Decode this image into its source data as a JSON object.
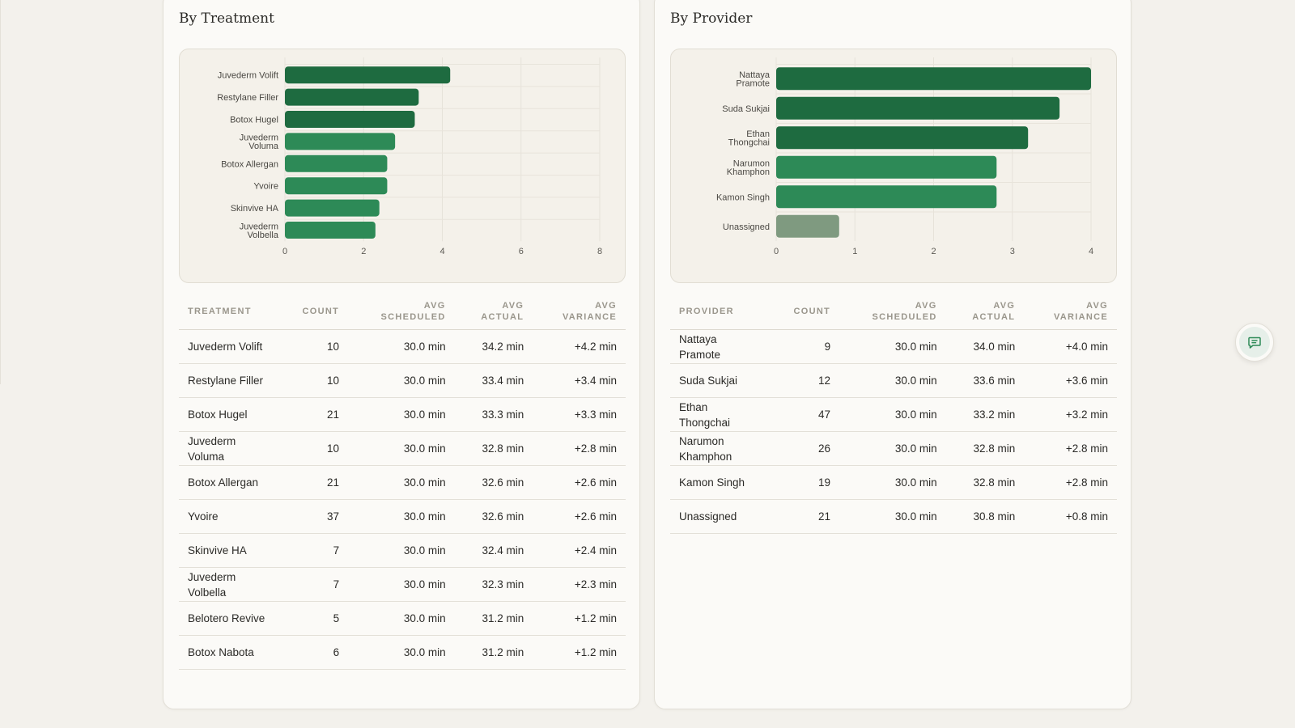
{
  "treatment": {
    "title": "By Treatment",
    "headers": {
      "name": "TREATMENT",
      "count": "COUNT",
      "sched": "AVG SCHEDULED",
      "actual": "AVG ACTUAL",
      "variance": "AVG VARIANCE"
    },
    "rows": [
      {
        "name": "Juvederm Volift",
        "count": "10",
        "sched": "30.0 min",
        "actual": "34.2 min",
        "variance": "+4.2 min"
      },
      {
        "name": "Restylane Filler",
        "count": "10",
        "sched": "30.0 min",
        "actual": "33.4 min",
        "variance": "+3.4 min"
      },
      {
        "name": "Botox Hugel",
        "count": "21",
        "sched": "30.0 min",
        "actual": "33.3 min",
        "variance": "+3.3 min"
      },
      {
        "name": "Juvederm Voluma",
        "count": "10",
        "sched": "30.0 min",
        "actual": "32.8 min",
        "variance": "+2.8 min"
      },
      {
        "name": "Botox Allergan",
        "count": "21",
        "sched": "30.0 min",
        "actual": "32.6 min",
        "variance": "+2.6 min"
      },
      {
        "name": "Yvoire",
        "count": "37",
        "sched": "30.0 min",
        "actual": "32.6 min",
        "variance": "+2.6 min"
      },
      {
        "name": "Skinvive HA",
        "count": "7",
        "sched": "30.0 min",
        "actual": "32.4 min",
        "variance": "+2.4 min"
      },
      {
        "name": "Juvederm Volbella",
        "count": "7",
        "sched": "30.0 min",
        "actual": "32.3 min",
        "variance": "+2.3 min"
      },
      {
        "name": "Belotero Revive",
        "count": "5",
        "sched": "30.0 min",
        "actual": "31.2 min",
        "variance": "+1.2 min"
      },
      {
        "name": "Botox Nabota",
        "count": "6",
        "sched": "30.0 min",
        "actual": "31.2 min",
        "variance": "+1.2 min"
      }
    ]
  },
  "provider": {
    "title": "By Provider",
    "headers": {
      "name": "PROVIDER",
      "count": "COUNT",
      "sched": "AVG SCHEDULED",
      "actual": "AVG ACTUAL",
      "variance": "AVG VARIANCE"
    },
    "rows": [
      {
        "name": "Nattaya Pramote",
        "count": "9",
        "sched": "30.0 min",
        "actual": "34.0 min",
        "variance": "+4.0 min"
      },
      {
        "name": "Suda Sukjai",
        "count": "12",
        "sched": "30.0 min",
        "actual": "33.6 min",
        "variance": "+3.6 min"
      },
      {
        "name": "Ethan Thongchai",
        "count": "47",
        "sched": "30.0 min",
        "actual": "33.2 min",
        "variance": "+3.2 min"
      },
      {
        "name": "Narumon Khamphon",
        "count": "26",
        "sched": "30.0 min",
        "actual": "32.8 min",
        "variance": "+2.8 min"
      },
      {
        "name": "Kamon Singh",
        "count": "19",
        "sched": "30.0 min",
        "actual": "32.8 min",
        "variance": "+2.8 min"
      },
      {
        "name": "Unassigned",
        "count": "21",
        "sched": "30.0 min",
        "actual": "30.8 min",
        "variance": "+0.8 min"
      }
    ]
  },
  "chart_data": [
    {
      "type": "bar",
      "orientation": "horizontal",
      "categories": [
        [
          "Juvederm Volift"
        ],
        [
          "Restylane Filler"
        ],
        [
          "Botox Hugel"
        ],
        [
          "Juvederm",
          "Voluma"
        ],
        [
          "Botox Allergan"
        ],
        [
          "Yvoire"
        ],
        [
          "Skinvive HA"
        ],
        [
          "Juvederm",
          "Volbella"
        ]
      ],
      "values": [
        4.2,
        3.4,
        3.3,
        2.8,
        2.6,
        2.6,
        2.4,
        2.3
      ],
      "colors": [
        "#1e6b40",
        "#1e6b40",
        "#1e6b40",
        "#2d8a57",
        "#2d8a57",
        "#2d8a57",
        "#2d8a57",
        "#2d8a57"
      ],
      "xticks": [
        "0",
        "2",
        "4",
        "6",
        "8"
      ],
      "xlim": [
        0,
        8
      ],
      "grid": true
    },
    {
      "type": "bar",
      "orientation": "horizontal",
      "categories": [
        [
          "Nattaya",
          "Pramote"
        ],
        [
          "Suda Sukjai"
        ],
        [
          "Ethan",
          "Thongchai"
        ],
        [
          "Narumon",
          "Khamphon"
        ],
        [
          "Kamon Singh"
        ],
        [
          "Unassigned"
        ]
      ],
      "values": [
        4.0,
        3.6,
        3.2,
        2.8,
        2.8,
        0.8
      ],
      "colors": [
        "#1e6b40",
        "#1e6b40",
        "#1e6b40",
        "#2d8a57",
        "#2d8a57",
        "#7f9a80"
      ],
      "xticks": [
        "0",
        "1",
        "2",
        "3",
        "4"
      ],
      "xlim": [
        0,
        4
      ],
      "grid": true
    }
  ],
  "fab": {
    "icon": "chat-icon",
    "accent": "#2d8a57"
  }
}
